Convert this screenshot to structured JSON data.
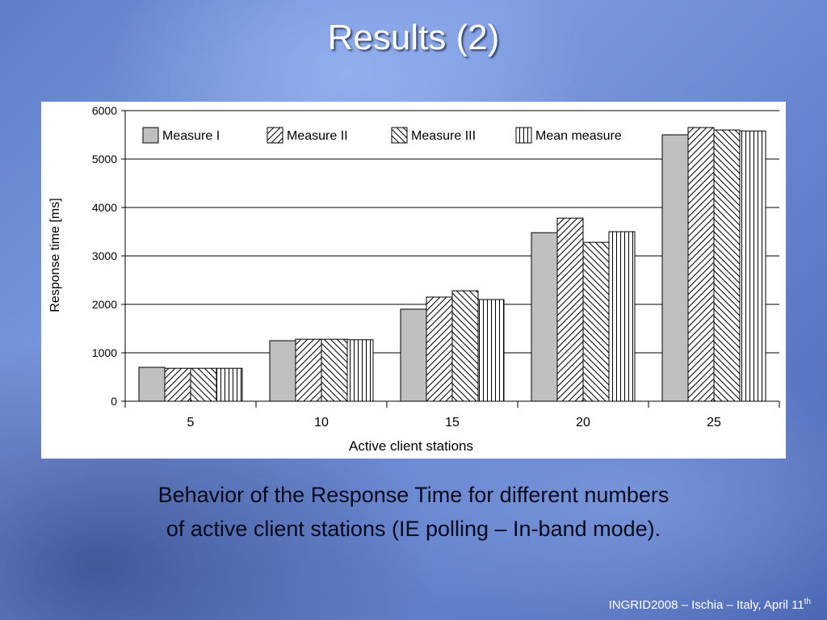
{
  "slide": {
    "title": "Results (2)",
    "caption_line1": "Behavior of the Response Time for different numbers",
    "caption_line2": "of active client stations (IE polling – In-band mode).",
    "footer_text": "INGRID2008 – Ischia – Italy, April 11",
    "footer_sup": "th"
  },
  "chart_data": {
    "type": "bar",
    "title": "",
    "xlabel": "Active client stations",
    "ylabel": "Response time [ms]",
    "categories": [
      "5",
      "10",
      "15",
      "20",
      "25"
    ],
    "ylim": [
      0,
      6000
    ],
    "yticks": [
      0,
      1000,
      2000,
      3000,
      4000,
      5000,
      6000
    ],
    "grid": true,
    "legend_position": "top",
    "series": [
      {
        "name": "Measure I",
        "pattern": "solid-gray",
        "values": [
          700,
          1250,
          1900,
          3480,
          5500
        ]
      },
      {
        "name": "Measure II",
        "pattern": "diagonal-up",
        "values": [
          680,
          1280,
          2150,
          3780,
          5650
        ]
      },
      {
        "name": "Measure III",
        "pattern": "diagonal-down",
        "values": [
          680,
          1280,
          2280,
          3280,
          5600
        ]
      },
      {
        "name": "Mean measure",
        "pattern": "vertical",
        "values": [
          680,
          1270,
          2100,
          3500,
          5580
        ]
      }
    ]
  }
}
